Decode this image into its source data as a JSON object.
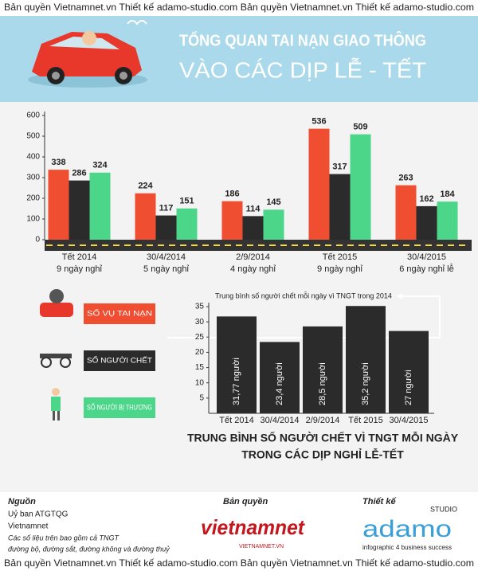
{
  "watermark_top": "Bản quyền Vietnamnet.vn   Thiết kế adamo-studio.com   Bản quyền Vietnamnet.vn   Thiết kế adamo-studio.com",
  "header": {
    "title": "TỔNG QUAN TAI NẠN GIAO THÔNG",
    "subtitle": "VÀO CÁC DỊP LỄ - TẾT"
  },
  "chart_data": [
    {
      "type": "bar",
      "categories": [
        "Tết 2014",
        "30/4/2014",
        "2/9/2014",
        "Tết 2015",
        "30/4/2015"
      ],
      "category_notes": [
        "9 ngày nghỉ",
        "5 ngày nghỉ",
        "4 ngày nghỉ",
        "9 ngày nghỉ",
        "6 ngày nghỉ lễ"
      ],
      "series": [
        {
          "name": "SỐ VỤ TAI NẠN",
          "color": "#f04e30",
          "values": [
            338,
            224,
            186,
            536,
            263
          ]
        },
        {
          "name": "SỐ NGƯỜI CHẾT",
          "color": "#2b2b2b",
          "values": [
            286,
            117,
            114,
            317,
            162
          ]
        },
        {
          "name": "SỐ NGƯỜI BỊ THƯƠNG",
          "color": "#4cd68a",
          "values": [
            324,
            151,
            145,
            509,
            184
          ]
        }
      ],
      "ylim": [
        0,
        600
      ],
      "yticks": [
        0,
        100,
        200,
        300,
        400,
        500,
        600
      ],
      "grid": false,
      "legend": "left"
    },
    {
      "type": "bar",
      "title_lines": [
        "TRUNG BÌNH SỐ NGƯỜI CHẾT VÌ TNGT MỖI NGÀY",
        "TRONG CÁC DỊP NGHỈ LỄ-TẾT"
      ],
      "annotation": "Trung bình số người chết mỗi ngày vì TNGT trong 2014",
      "categories": [
        "Tết 2014",
        "30/4/2014",
        "2/9/2014",
        "Tết 2015",
        "30/4/2015"
      ],
      "values": [
        31.77,
        23.4,
        28.5,
        35.2,
        27
      ],
      "value_labels": [
        "31,77 người",
        "23,4 người",
        "28,5 người",
        "35,2 người",
        "27 người"
      ],
      "color": "#2b2b2b",
      "ylim": [
        0,
        35
      ],
      "yticks": [
        5,
        10,
        15,
        20,
        25,
        30,
        35
      ],
      "grid": false
    }
  ],
  "footer": {
    "source_title": "Nguồn",
    "sources": [
      "Uỷ ban ATGTQG",
      "Vietnamnet"
    ],
    "notes": [
      "Các số liệu trên bao gồm cả TNGT",
      "đường bộ, đường sắt, đường không và đường thuỷ"
    ],
    "copyright_title": "Bản quyền",
    "copyright_logo": "vietnamnet",
    "copyright_url": "VIETNAMNET.VN",
    "design_title": "Thiết kế",
    "design_studio": "STUDIO",
    "design_logo": "adamo",
    "design_tagline": "infographic 4 business success"
  },
  "watermark_bottom": "Bản quyền Vietnamnet.vn   Thiết kế adamo-studio.com   Bản quyền Vietnamnet.vn   Thiết kế adamo-studio.com"
}
